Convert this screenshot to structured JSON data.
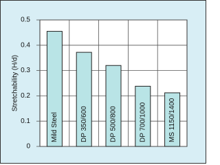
{
  "chart_data": {
    "type": "bar",
    "y_label": "Stretchability (H/d)",
    "categories": [
      "Mild Steel",
      "DP 350/600",
      "DP 500/800",
      "DP 700/1000",
      "MS 1150/1400"
    ],
    "values": [
      0.455,
      0.372,
      0.32,
      0.238,
      0.212
    ],
    "color": "#b9e4e6",
    "ylim": [
      0,
      0.5
    ],
    "yticks": [
      0,
      0.1,
      0.2,
      0.3,
      0.4,
      0.5
    ],
    "grid": true
  }
}
